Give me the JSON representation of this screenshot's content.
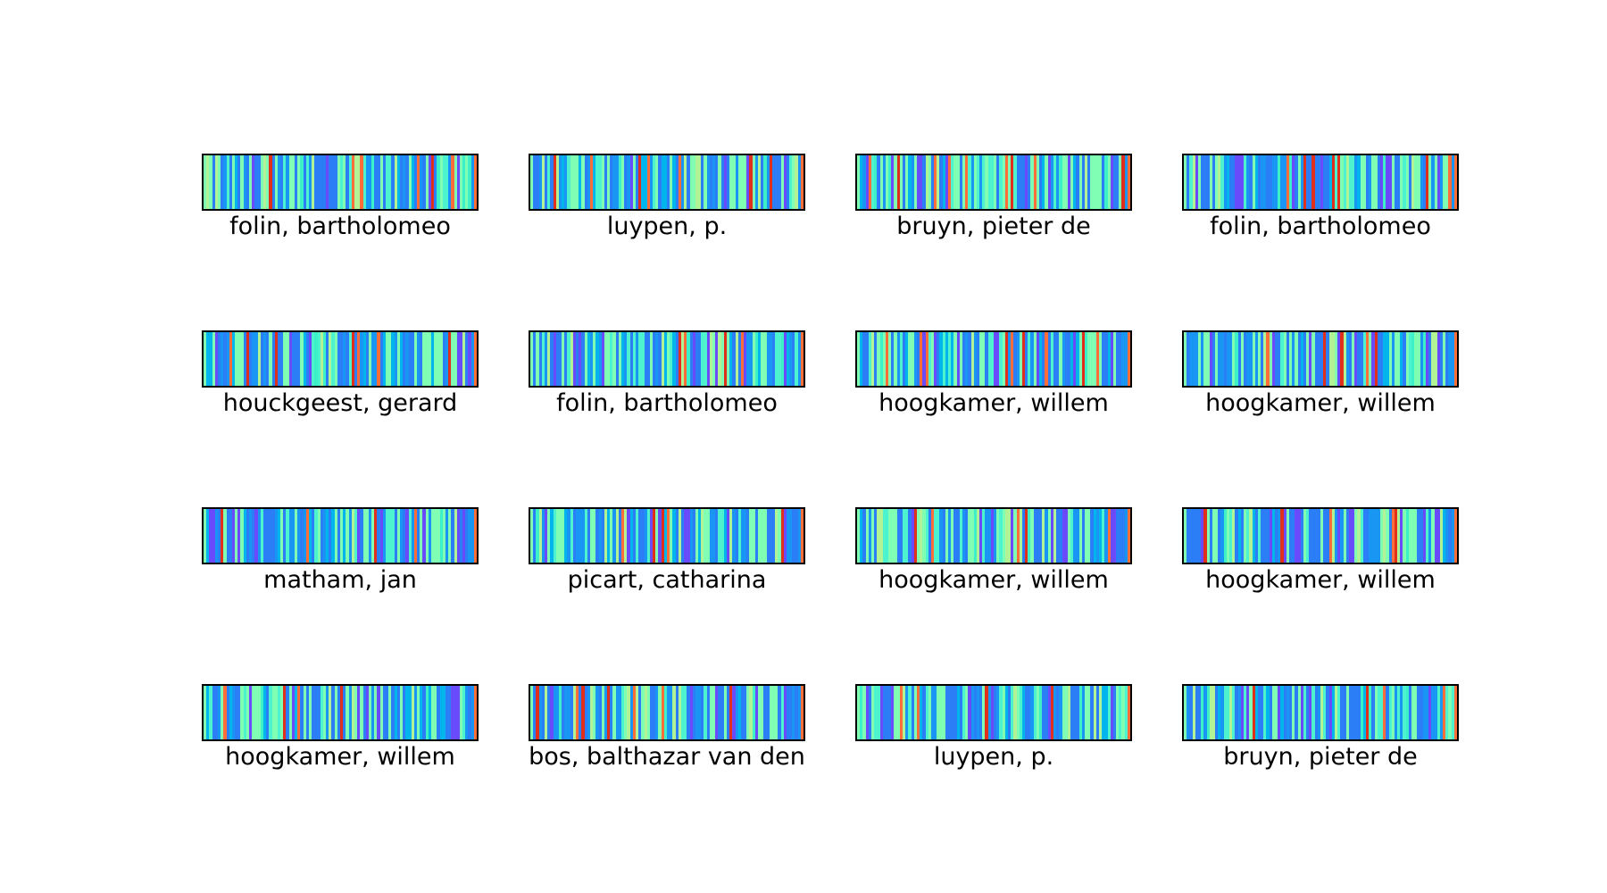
{
  "chart_data": {
    "type": "heatmap",
    "colormap": "rainbow",
    "rows": 4,
    "cols": 4,
    "panels": [
      {
        "label": "folin, bartholomeo"
      },
      {
        "label": "luypen, p."
      },
      {
        "label": "bruyn, pieter de"
      },
      {
        "label": "folin, bartholomeo"
      },
      {
        "label": "houckgeest, gerard"
      },
      {
        "label": "folin, bartholomeo"
      },
      {
        "label": "hoogkamer, willem"
      },
      {
        "label": "hoogkamer, willem"
      },
      {
        "label": "matham, jan"
      },
      {
        "label": "picart, catharina"
      },
      {
        "label": "hoogkamer, willem"
      },
      {
        "label": "hoogkamer, willem"
      },
      {
        "label": "hoogkamer, willem"
      },
      {
        "label": "bos, balthazar van den"
      },
      {
        "label": "luypen, p."
      },
      {
        "label": "bruyn, pieter de"
      }
    ],
    "palette": [
      "#80ffb4",
      "#2c7ef7",
      "#1996f3",
      "#4df3ce",
      "#6a4bfb",
      "#ff6d38",
      "#e02f1a",
      "#b2f396",
      "#00b5eb",
      "#3cf0c8"
    ]
  }
}
